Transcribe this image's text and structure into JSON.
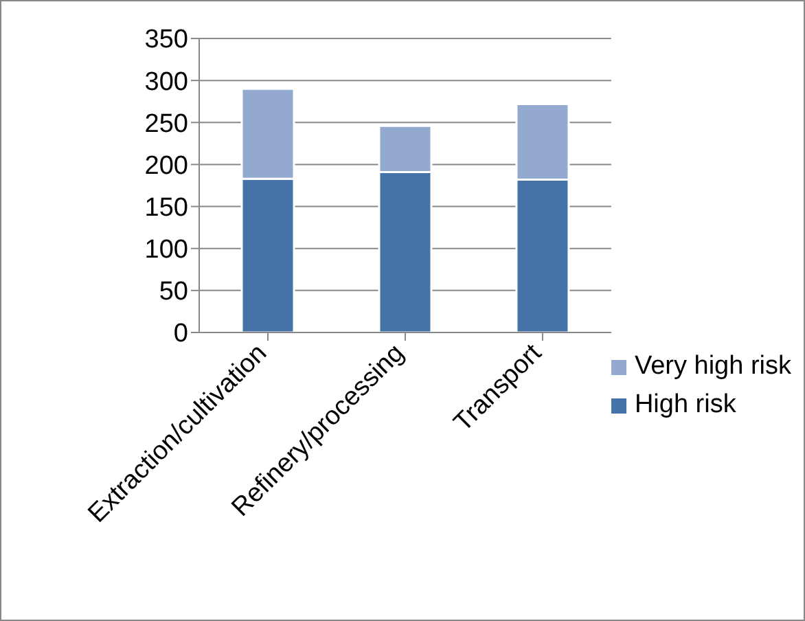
{
  "chart_data": {
    "type": "bar",
    "stacked": true,
    "categories": [
      "Extraction/cultivation",
      "Refinery/processing",
      "Transport"
    ],
    "series": [
      {
        "name": "High risk",
        "color": "#4572a7",
        "values": [
          183,
          191,
          182
        ]
      },
      {
        "name": "Very high risk",
        "color": "#93a9cf",
        "values": [
          107,
          55,
          90
        ]
      }
    ],
    "ylim": [
      0,
      350
    ],
    "yticks": [
      0,
      50,
      100,
      150,
      200,
      250,
      300,
      350
    ],
    "grid": "y",
    "legend": "right"
  }
}
